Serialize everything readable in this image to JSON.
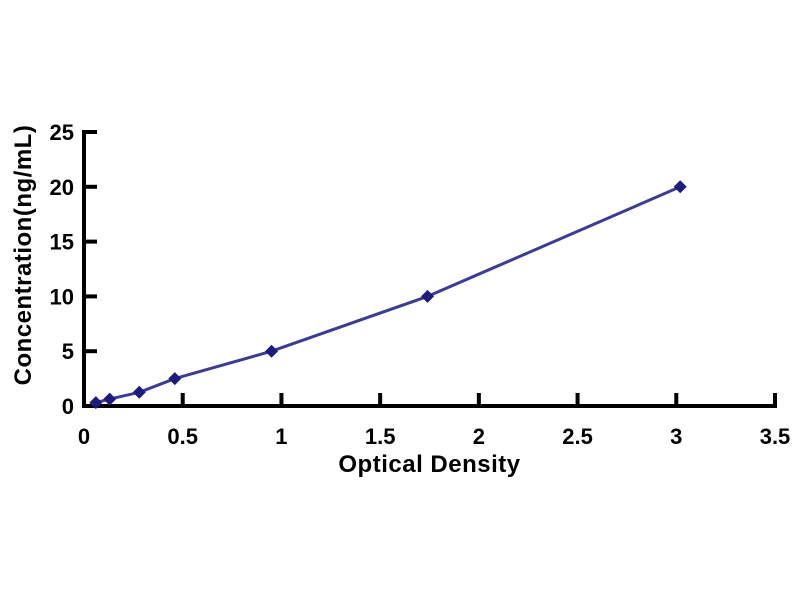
{
  "figure": {
    "background": "#ffffff",
    "kind": "ELISA standard curve"
  },
  "chart_data": {
    "type": "line",
    "title": "",
    "xlabel": "Optical Density",
    "ylabel": "Concentration(ng/mL)",
    "x": [
      0.06,
      0.13,
      0.28,
      0.46,
      0.95,
      1.74,
      3.02
    ],
    "y": [
      0.31,
      0.63,
      1.25,
      2.5,
      5,
      10,
      20
    ],
    "xlim": [
      0,
      3.5
    ],
    "ylim": [
      0,
      25
    ],
    "xticks": [
      0,
      0.5,
      1,
      1.5,
      2,
      2.5,
      3,
      3.5
    ],
    "xtick_labels": [
      "0",
      "0.5",
      "1",
      "1.5",
      "2",
      "2.5",
      "3",
      "3.5"
    ],
    "yticks": [
      0,
      5,
      10,
      15,
      20,
      25
    ],
    "ytick_labels": [
      "0",
      "5",
      "10",
      "15",
      "20",
      "25"
    ],
    "grid": false,
    "legend": null,
    "marker": "diamond",
    "colors": {
      "line": "#3C3C96",
      "marker": "#1C1C7E",
      "axis": "#000000",
      "text": "#000000"
    }
  }
}
